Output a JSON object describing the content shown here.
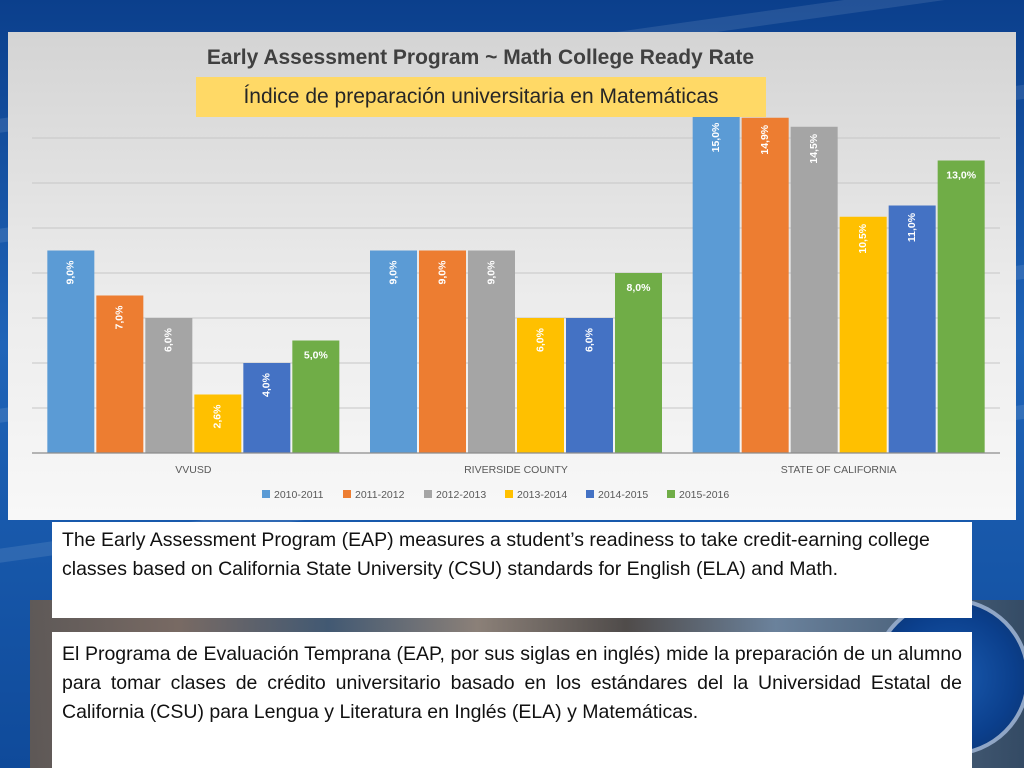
{
  "chart_data": {
    "type": "bar",
    "title": "Early Assessment Program ~ Math College Ready Rate",
    "subtitle": "Índice de preparación universitaria en Matemáticas",
    "categories": [
      "VVUSD",
      "RIVERSIDE COUNTY",
      "STATE OF CALIFORNIA"
    ],
    "series": [
      {
        "name": "2010-2011",
        "color": "#5b9bd5",
        "values": [
          9.0,
          9.0,
          15.0
        ],
        "labels": [
          "9,0%",
          "9,0%",
          "15,0%"
        ]
      },
      {
        "name": "2011-2012",
        "color": "#ed7d31",
        "values": [
          7.0,
          9.0,
          14.9
        ],
        "labels": [
          "7,0%",
          "9,0%",
          "14,9%"
        ]
      },
      {
        "name": "2012-2013",
        "color": "#a5a5a5",
        "values": [
          6.0,
          9.0,
          14.5
        ],
        "labels": [
          "6,0%",
          "9,0%",
          "14,5%"
        ]
      },
      {
        "name": "2013-2014",
        "color": "#ffc000",
        "values": [
          2.6,
          6.0,
          10.5
        ],
        "labels": [
          "2,6%",
          "6,0%",
          "10,5%"
        ]
      },
      {
        "name": "2014-2015",
        "color": "#4472c4",
        "values": [
          4.0,
          6.0,
          11.0
        ],
        "labels": [
          "4,0%",
          "6,0%",
          "11,0%"
        ]
      },
      {
        "name": "2015-2016",
        "color": "#70ad47",
        "values": [
          5.0,
          8.0,
          13.0
        ],
        "labels": [
          "5,0%",
          "8,0%",
          "13,0%"
        ]
      }
    ],
    "ylim": [
      0,
      15
    ],
    "grid": true,
    "legend": "bottom"
  },
  "text": {
    "english": "The Early Assessment Program (EAP) measures a student’s readiness to take credit-earning college classes based on California State University (CSU) standards for English (ELA) and Math.",
    "spanish": "El Programa de Evaluación Temprana (EAP, por sus siglas en inglés) mide la preparación de un alumno para tomar clases de crédito universitario basado en los estándares del la Universidad Estatal de California (CSU) para Lengua y Literatura en Inglés (ELA) y Matemáticas."
  }
}
